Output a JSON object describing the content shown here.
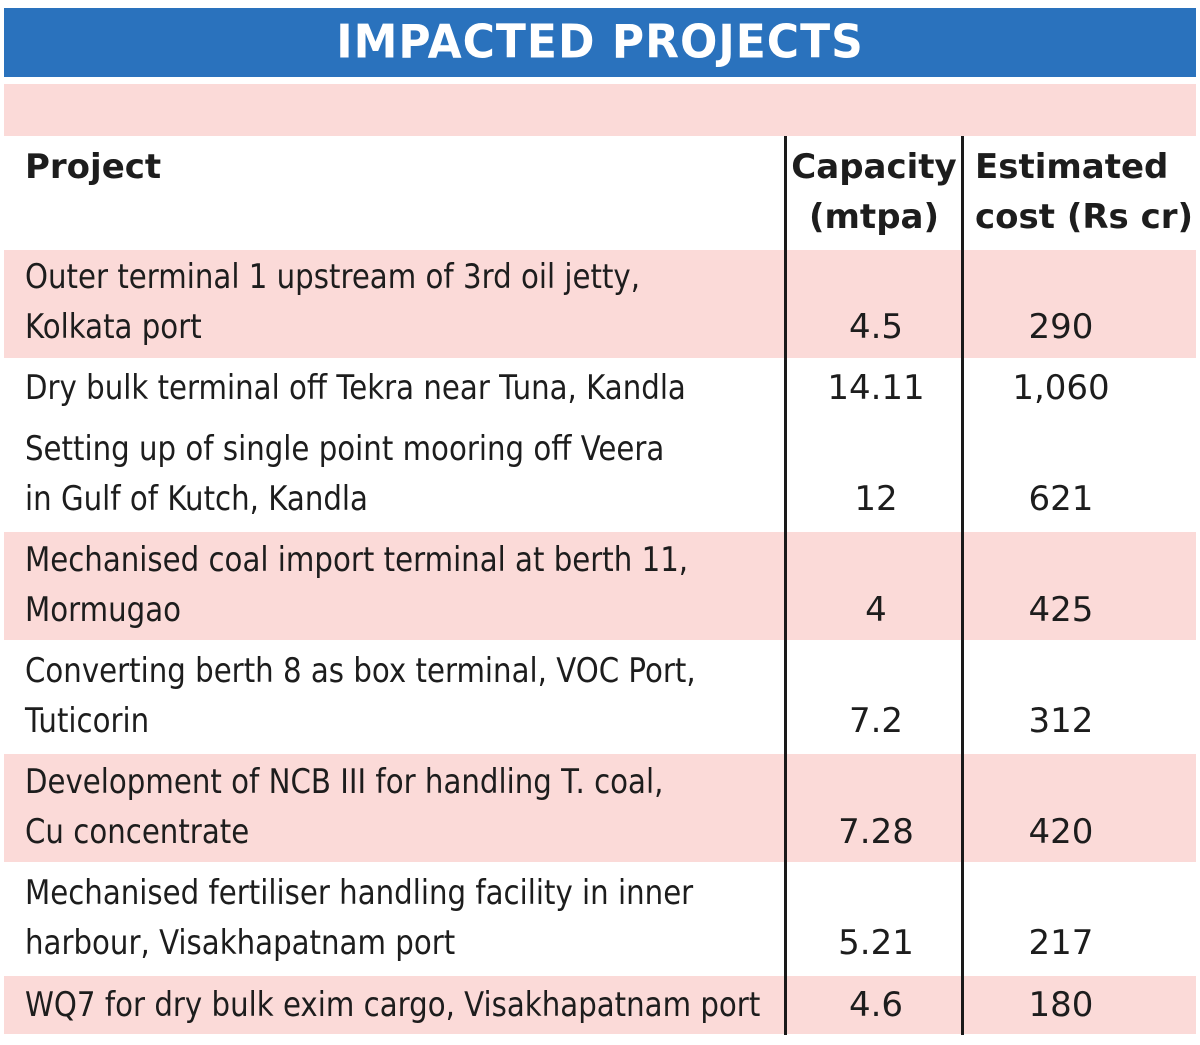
{
  "title": "IMPACTED PROJECTS",
  "colors": {
    "title_bar": "#2a72bd",
    "row_shade": "#fbdad8",
    "rule": "#1a1a1a"
  },
  "chart_data": {
    "type": "table",
    "title": "IMPACTED PROJECTS",
    "columns": [
      "Project",
      "Capacity (mtpa)",
      "Estimated cost (Rs cr)"
    ],
    "header": {
      "project": "Project",
      "capacity_l1": "Capacity",
      "capacity_l2": "(mtpa)",
      "cost_l1": "Estimated",
      "cost_l2": "cost (Rs cr)"
    },
    "rows": [
      {
        "project_l1": "Outer terminal 1 upstream of 3rd oil jetty,",
        "project_l2": "Kolkata port",
        "capacity": "4.5",
        "cost": "290"
      },
      {
        "project_l1": "Dry bulk terminal off Tekra near Tuna, Kandla",
        "project_l2": "",
        "capacity": "14.11",
        "cost": "1,060"
      },
      {
        "project_l1": "Setting up of single point mooring off Veera",
        "project_l2": "in Gulf of Kutch, Kandla",
        "capacity": "12",
        "cost": "621"
      },
      {
        "project_l1": "Mechanised coal import terminal at berth 11,",
        "project_l2": "Mormugao",
        "capacity": "4",
        "cost": "425"
      },
      {
        "project_l1": "Converting berth 8 as box terminal, VOC Port,",
        "project_l2": "Tuticorin",
        "capacity": "7.2",
        "cost": "312"
      },
      {
        "project_l1": "Development of NCB III for handling T. coal,",
        "project_l2": "Cu concentrate",
        "capacity": "7.28",
        "cost": "420"
      },
      {
        "project_l1": "Mechanised fertiliser handling facility in inner",
        "project_l2": "harbour, Visakhapatnam port",
        "capacity": "5.21",
        "cost": "217"
      },
      {
        "project_l1": "WQ7 for dry bulk exim cargo, Visakhapatnam port",
        "project_l2": "",
        "capacity": "4.6",
        "cost": "180"
      }
    ]
  }
}
